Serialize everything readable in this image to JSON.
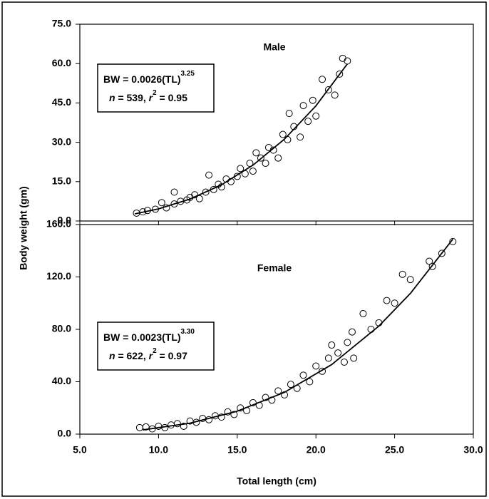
{
  "shared": {
    "xlabel": "Total length (cm)",
    "ylabel": "Body weight (gm)"
  },
  "chart_data": [
    {
      "type": "scatter",
      "title": "Male",
      "equation": {
        "base": "BW = 0.0026(TL)",
        "exponent": "3.25"
      },
      "stats": [
        "n",
        " = 539, ",
        "r",
        "2",
        " = 0.95"
      ],
      "xlim": [
        5,
        30
      ],
      "xticks": [
        5,
        10,
        15,
        20,
        25,
        30
      ],
      "ylim": [
        0,
        75
      ],
      "yticks": [
        {
          "value": 0,
          "label": "0.0"
        },
        {
          "value": 15,
          "label": "15.0"
        },
        {
          "value": 30,
          "label": "30.0"
        },
        {
          "value": 45,
          "label": "45.0"
        },
        {
          "value": 60,
          "label": "60.0"
        },
        {
          "value": 75,
          "label": "75.0"
        }
      ],
      "series": [
        {
          "mode": "markers",
          "color": "#000000",
          "x": [
            8.6,
            9,
            9.3,
            9.8,
            10.2,
            10.5,
            11,
            11,
            11.4,
            11.8,
            12,
            12.3,
            12.6,
            13,
            13.2,
            13.5,
            13.8,
            14,
            14.3,
            14.6,
            15,
            15.2,
            15.5,
            15.8,
            16,
            16.2,
            16.5,
            16.8,
            17,
            17.3,
            17.6,
            17.9,
            18.2,
            18.3,
            18.6,
            19,
            19.2,
            19.5,
            19.8,
            20,
            20.4,
            20.8,
            21.2,
            21.5,
            21.7,
            22
          ],
          "values": [
            3,
            3.5,
            4,
            4.5,
            7,
            5,
            6.5,
            11,
            7.5,
            8,
            9,
            10,
            8.5,
            11,
            17.5,
            12,
            14,
            13,
            16,
            15,
            17,
            20,
            18,
            22,
            19,
            26,
            24,
            22,
            28,
            27,
            24,
            33,
            31,
            41,
            36,
            32,
            44,
            38,
            46,
            40,
            54,
            50,
            48,
            56,
            62,
            61
          ]
        },
        {
          "mode": "line",
          "color": "#000000",
          "x": [
            8.5,
            10,
            12,
            14,
            16,
            18,
            20,
            22
          ],
          "values": [
            2.72,
            4.62,
            8.36,
            13.79,
            21.29,
            31.2,
            43.9,
            59.9
          ]
        }
      ]
    },
    {
      "type": "scatter",
      "title": "Female",
      "equation": {
        "base": "BW = 0.0023(TL)",
        "exponent": "3.30"
      },
      "stats": [
        "n",
        " = 622, ",
        "r",
        "2",
        " = 0.97"
      ],
      "xlim": [
        5,
        30
      ],
      "xticks": [
        {
          "value": 5,
          "label": "5.0"
        },
        {
          "value": 10,
          "label": "10.0"
        },
        {
          "value": 15,
          "label": "15.0"
        },
        {
          "value": 20,
          "label": "20.0"
        },
        {
          "value": 25,
          "label": "25.0"
        },
        {
          "value": 30,
          "label": "30.0"
        }
      ],
      "ylim": [
        0,
        160
      ],
      "yticks": [
        {
          "value": 0,
          "label": "0.0"
        },
        {
          "value": 40,
          "label": "40.0"
        },
        {
          "value": 80,
          "label": "80.0"
        },
        {
          "value": 120,
          "label": "120.0"
        },
        {
          "value": 160,
          "label": "160.0"
        }
      ],
      "series": [
        {
          "mode": "markers",
          "color": "#000000",
          "x": [
            8.8,
            9.2,
            9.6,
            10,
            10.4,
            10.8,
            11.2,
            11.6,
            12,
            12.4,
            12.8,
            13.2,
            13.6,
            14,
            14.4,
            14.8,
            15.2,
            15.6,
            16,
            16.4,
            16.8,
            17.2,
            17.6,
            18,
            18.4,
            18.8,
            19.2,
            19.6,
            20,
            20.4,
            20.8,
            21,
            21.4,
            21.8,
            22,
            22.4,
            22.3,
            23,
            23.5,
            24,
            24.5,
            25,
            25.5,
            26,
            27.2,
            27.4,
            28,
            28.7
          ],
          "values": [
            5,
            5.5,
            4,
            6,
            5,
            7,
            8,
            6,
            10,
            9,
            12,
            11,
            14,
            13,
            17,
            15,
            20,
            18,
            24,
            22,
            28,
            26,
            33,
            30,
            38,
            35,
            45,
            40,
            52,
            48,
            58,
            68,
            62,
            55,
            70,
            58,
            78,
            92,
            80,
            85,
            102,
            100,
            122,
            118,
            132,
            128,
            138,
            147
          ]
        },
        {
          "mode": "line",
          "color": "#000000",
          "x": [
            9,
            12,
            15,
            18,
            21,
            24,
            26,
            28.7
          ],
          "values": [
            3.24,
            8.37,
            17.5,
            31.9,
            53.1,
            82.5,
            107.4,
            148.9
          ]
        }
      ]
    }
  ]
}
